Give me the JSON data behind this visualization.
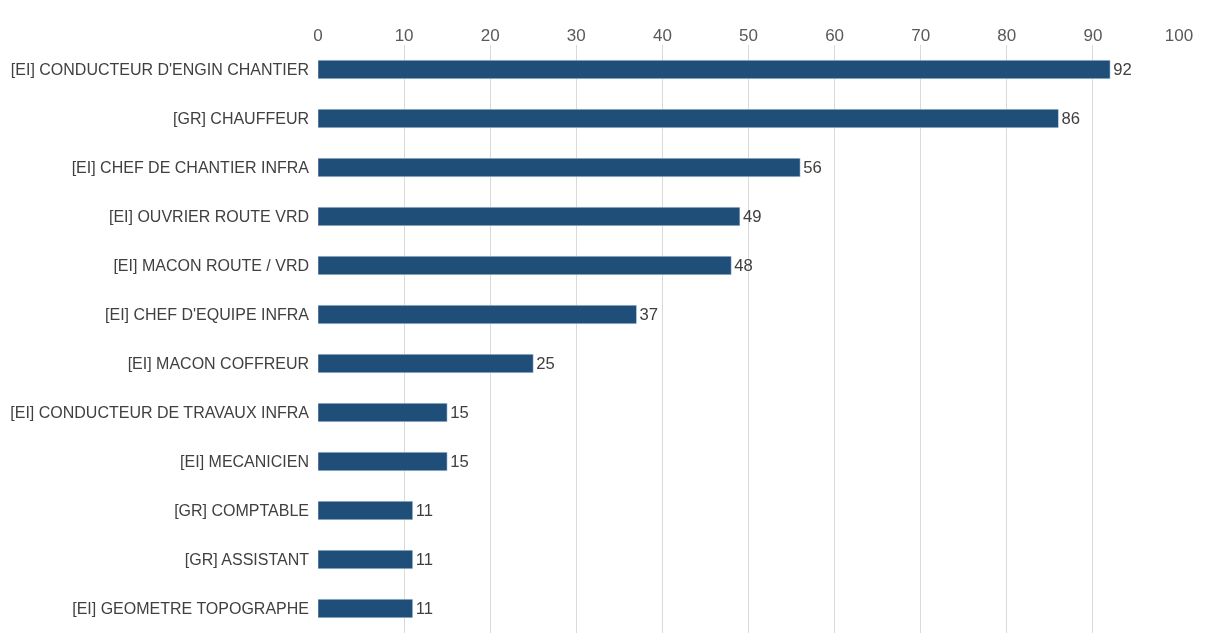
{
  "chart_data": {
    "type": "bar",
    "orientation": "horizontal",
    "categories": [
      "[EI] CONDUCTEUR D'ENGIN CHANTIER",
      "[GR] CHAUFFEUR",
      "[EI] CHEF DE CHANTIER INFRA",
      "[EI] OUVRIER ROUTE VRD",
      "[EI] MACON ROUTE / VRD",
      "[EI] CHEF D'EQUIPE INFRA",
      "[EI] MACON COFFREUR",
      "[EI] CONDUCTEUR DE TRAVAUX INFRA",
      "[EI] MECANICIEN",
      "[GR] COMPTABLE",
      "[GR] ASSISTANT",
      "[EI] GEOMETRE TOPOGRAPHE"
    ],
    "values": [
      92,
      86,
      56,
      49,
      48,
      37,
      25,
      15,
      15,
      11,
      11,
      11
    ],
    "color": "#1f4e79",
    "xlim": [
      0,
      100
    ],
    "xticks": [
      0,
      10,
      20,
      30,
      40,
      50,
      60,
      70,
      80,
      90,
      100
    ],
    "grid": "x",
    "data_labels": true,
    "legend": false
  }
}
